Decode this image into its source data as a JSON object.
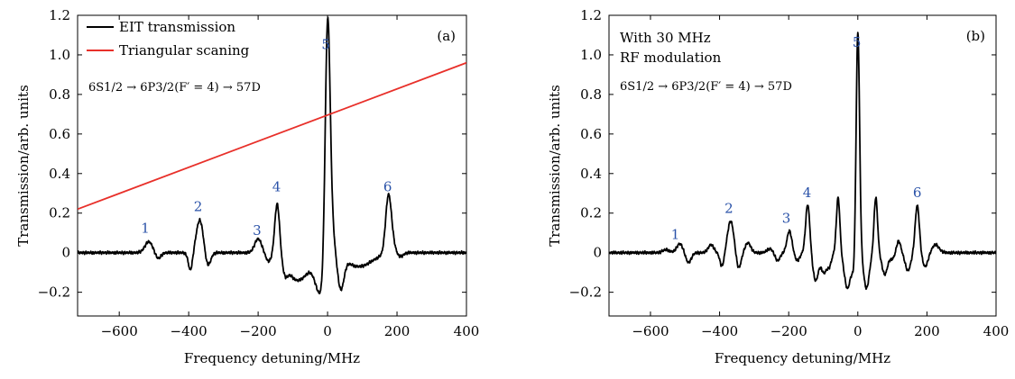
{
  "chart_data": [
    {
      "panel_label": "(a)",
      "type": "line",
      "xlabel": "Frequency detuning/MHz",
      "ylabel": "Transmission/arb. units",
      "xlim": [
        -720,
        400
      ],
      "ylim": [
        -0.32,
        1.2
      ],
      "xticks": [
        -600,
        -400,
        -200,
        0,
        200,
        400
      ],
      "yticks": [
        -0.2,
        0,
        0.2,
        0.4,
        0.6,
        0.8,
        1.0,
        1.2
      ],
      "xtick_labels": [
        "−600",
        "−400",
        "−200",
        "0",
        "200",
        "400"
      ],
      "ytick_labels": [
        "−0.2",
        "0",
        "0.2",
        "0.4",
        "0.6",
        "0.8",
        "1.0",
        "1.2"
      ],
      "transition": "6S1/2 → 6P3/2(F′ = 4) → 57D",
      "legend": {
        "placement": "top-left",
        "entries": [
          "EIT transmission",
          "Triangular scaning"
        ]
      },
      "series": [
        {
          "name": "EIT transmission",
          "color": "#000000",
          "baseline": 0.0,
          "features": [
            {
              "x": -515,
              "amp": 0.055,
              "w": 11
            },
            {
              "x": -488,
              "amp": -0.03,
              "w": 8
            },
            {
              "x": -395,
              "amp": -0.09,
              "w": 6
            },
            {
              "x": -368,
              "amp": 0.165,
              "w": 10
            },
            {
              "x": -345,
              "amp": -0.07,
              "w": 8
            },
            {
              "x": -200,
              "amp": 0.07,
              "w": 10
            },
            {
              "x": -170,
              "amp": -0.04,
              "w": 8
            },
            {
              "x": -145,
              "amp": 0.27,
              "w": 7
            },
            {
              "x": -122,
              "amp": -0.05,
              "w": 7
            },
            {
              "x": -85,
              "amp": -0.14,
              "w": 32
            },
            {
              "x": -20,
              "amp": -0.19,
              "w": 15
            },
            {
              "x": 0,
              "amp": 1.18,
              "w": 7
            },
            {
              "x": 10,
              "amp": 0.16,
              "w": 9
            },
            {
              "x": 38,
              "amp": -0.16,
              "w": 9
            },
            {
              "x": 90,
              "amp": -0.07,
              "w": 38
            },
            {
              "x": 175,
              "amp": 0.28,
              "w": 8
            },
            {
              "x": 186,
              "amp": 0.05,
              "w": 8
            },
            {
              "x": 210,
              "amp": -0.02,
              "w": 8
            }
          ]
        },
        {
          "name": "Triangular scaning",
          "color": "#e8302a",
          "line": {
            "x": [
              -720,
              400
            ],
            "y": [
              0.22,
              0.96
            ]
          }
        }
      ],
      "peak_labels": [
        {
          "text": "1",
          "x": -525,
          "y": 0.1
        },
        {
          "text": "2",
          "x": -373,
          "y": 0.21
        },
        {
          "text": "3",
          "x": -203,
          "y": 0.09
        },
        {
          "text": "4",
          "x": -147,
          "y": 0.31
        },
        {
          "text": "5",
          "x": -5,
          "y": 1.03
        },
        {
          "text": "6",
          "x": 173,
          "y": 0.31
        }
      ]
    },
    {
      "panel_label": "(b)",
      "type": "line",
      "xlabel": "Frequency detuning/MHz",
      "ylabel": "Transmission/arb. units",
      "xlim": [
        -720,
        400
      ],
      "ylim": [
        -0.32,
        1.2
      ],
      "xticks": [
        -600,
        -400,
        -200,
        0,
        200,
        400
      ],
      "yticks": [
        -0.2,
        0,
        0.2,
        0.4,
        0.6,
        0.8,
        1.0,
        1.2
      ],
      "xtick_labels": [
        "−600",
        "−400",
        "−200",
        "0",
        "200",
        "400"
      ],
      "ytick_labels": [
        "−0.2",
        "0",
        "0.2",
        "0.4",
        "0.6",
        "0.8",
        "1.0",
        "1.2"
      ],
      "annotation_lines": [
        "With 30 MHz",
        "RF modulation"
      ],
      "transition": "6S1/2 → 6P3/2(F′ = 4) → 57D",
      "series": [
        {
          "name": "EIT transmission",
          "color": "#000000",
          "baseline": 0.0,
          "features": [
            {
              "x": -555,
              "amp": 0.015,
              "w": 10
            },
            {
              "x": -515,
              "amp": 0.045,
              "w": 9
            },
            {
              "x": -490,
              "amp": -0.05,
              "w": 8
            },
            {
              "x": -470,
              "amp": 0.0,
              "w": 8
            },
            {
              "x": -425,
              "amp": 0.04,
              "w": 8
            },
            {
              "x": -393,
              "amp": -0.07,
              "w": 6
            },
            {
              "x": -368,
              "amp": 0.16,
              "w": 9
            },
            {
              "x": -345,
              "amp": -0.08,
              "w": 7
            },
            {
              "x": -318,
              "amp": 0.05,
              "w": 8
            },
            {
              "x": -255,
              "amp": 0.02,
              "w": 8
            },
            {
              "x": -232,
              "amp": -0.04,
              "w": 7
            },
            {
              "x": -198,
              "amp": 0.11,
              "w": 7
            },
            {
              "x": -175,
              "amp": -0.04,
              "w": 7
            },
            {
              "x": -145,
              "amp": 0.245,
              "w": 6
            },
            {
              "x": -122,
              "amp": -0.14,
              "w": 8
            },
            {
              "x": -98,
              "amp": -0.1,
              "w": 8
            },
            {
              "x": -82,
              "amp": -0.06,
              "w": 6
            },
            {
              "x": -57,
              "amp": 0.28,
              "w": 5
            },
            {
              "x": -30,
              "amp": -0.18,
              "w": 9
            },
            {
              "x": -10,
              "amp": -0.1,
              "w": 6
            },
            {
              "x": 0,
              "amp": 1.14,
              "w": 5
            },
            {
              "x": 25,
              "amp": -0.18,
              "w": 8
            },
            {
              "x": 52,
              "amp": 0.28,
              "w": 5
            },
            {
              "x": 78,
              "amp": -0.11,
              "w": 8
            },
            {
              "x": 100,
              "amp": -0.03,
              "w": 7
            },
            {
              "x": 118,
              "amp": 0.06,
              "w": 6
            },
            {
              "x": 145,
              "amp": -0.09,
              "w": 8
            },
            {
              "x": 172,
              "amp": 0.24,
              "w": 6
            },
            {
              "x": 195,
              "amp": -0.07,
              "w": 8
            },
            {
              "x": 225,
              "amp": 0.04,
              "w": 10
            }
          ]
        }
      ],
      "peak_labels": [
        {
          "text": "1",
          "x": -528,
          "y": 0.07
        },
        {
          "text": "2",
          "x": -373,
          "y": 0.2
        },
        {
          "text": "3",
          "x": -207,
          "y": 0.15
        },
        {
          "text": "4",
          "x": -147,
          "y": 0.28
        },
        {
          "text": "5",
          "x": -3,
          "y": 1.04
        },
        {
          "text": "6",
          "x": 172,
          "y": 0.28
        }
      ]
    }
  ]
}
